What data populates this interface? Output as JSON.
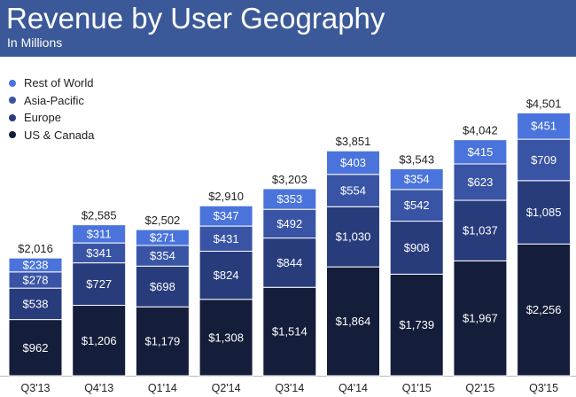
{
  "header": {
    "title": "Revenue by User Geography",
    "subtitle": "In Millions",
    "background": "#3b5998"
  },
  "chart_data": {
    "type": "bar",
    "stacked": true,
    "title": "Revenue by User Geography",
    "subtitle": "In Millions",
    "categories": [
      "Q3'13",
      "Q4'13",
      "Q1'14",
      "Q2'14",
      "Q3'14",
      "Q4'14",
      "Q1'15",
      "Q2'15",
      "Q3'15"
    ],
    "totals": [
      2016,
      2585,
      2502,
      2910,
      3203,
      3851,
      3543,
      4042,
      4501
    ],
    "total_labels": [
      "$2,016",
      "$2,585",
      "$2,502",
      "$2,910",
      "$3,203",
      "$3,851",
      "$3,543",
      "$4,042",
      "$4,501"
    ],
    "series": [
      {
        "name": "US & Canada",
        "color": "#141d3a",
        "values": [
          962,
          1206,
          1179,
          1308,
          1514,
          1864,
          1739,
          1967,
          2256
        ],
        "labels": [
          "$962",
          "$1,206",
          "$1,179",
          "$1,308",
          "$1,514",
          "$1,864",
          "$1,739",
          "$1,967",
          "$2,256"
        ]
      },
      {
        "name": "Europe",
        "color": "#283c7c",
        "values": [
          538,
          727,
          698,
          824,
          844,
          1030,
          908,
          1037,
          1085
        ],
        "labels": [
          "$538",
          "$727",
          "$698",
          "$824",
          "$844",
          "$1,030",
          "$908",
          "$1,037",
          "$1,085"
        ]
      },
      {
        "name": "Asia-Pacific",
        "color": "#3a54a5",
        "values": [
          278,
          341,
          354,
          431,
          492,
          554,
          542,
          623,
          709
        ],
        "labels": [
          "$278",
          "$341",
          "$354",
          "$431",
          "$492",
          "$554",
          "$542",
          "$623",
          "$709"
        ]
      },
      {
        "name": "Rest of World",
        "color": "#4a74dc",
        "values": [
          238,
          311,
          271,
          347,
          353,
          403,
          354,
          415,
          451
        ],
        "labels": [
          "$238",
          "$311",
          "$271",
          "$347",
          "$353",
          "$403",
          "$354",
          "$415",
          "$451"
        ]
      }
    ],
    "legend": [
      "Rest of World",
      "Asia-Pacific",
      "Europe",
      "US & Canada"
    ],
    "legend_position": "top-left",
    "ylim": [
      0,
      4600
    ],
    "grid": false
  }
}
